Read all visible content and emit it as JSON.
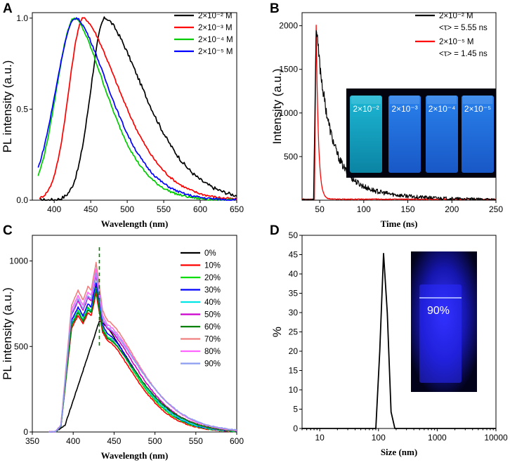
{
  "chart_data": [
    {
      "panel": "A",
      "type": "line",
      "xlabel": "Wavelength (nm)",
      "ylabel": "PL intensity (a.u.)",
      "xlim": [
        370,
        650
      ],
      "ylim": [
        0,
        1.03
      ],
      "xticks": [
        400,
        450,
        500,
        550,
        600,
        650
      ],
      "yticks": [
        0.0,
        0.5,
        1.0
      ],
      "ytick_labels": [
        "0.0",
        "0.5",
        "1.0"
      ],
      "legend": "top-right",
      "series": [
        {
          "name": "2×10⁻² M",
          "color": "#000000",
          "peak": 470,
          "width_left": 20,
          "width_right": 55,
          "start": 380
        },
        {
          "name": "2×10⁻³ M",
          "color": "#ff0000",
          "peak": 440,
          "width_left": 20,
          "width_right": 52,
          "start": 380
        },
        {
          "name": "2×10⁻⁴ M",
          "color": "#00cc00",
          "peak": 428,
          "width_left": 25,
          "width_right": 45,
          "start": 378
        },
        {
          "name": "2×10⁻⁵ M",
          "color": "#0000ff",
          "peak": 430,
          "width_left": 28,
          "width_right": 48,
          "start": 378
        }
      ]
    },
    {
      "panel": "B",
      "type": "line",
      "xlabel": "Time (ns)",
      "ylabel": "Intensity (a.u.)",
      "xlim": [
        30,
        250
      ],
      "ylim": [
        0,
        2150
      ],
      "xticks": [
        50,
        100,
        150,
        200,
        250
      ],
      "yticks": [
        500,
        1000,
        1500,
        2000
      ],
      "legend": "top-right",
      "series": [
        {
          "name": "2×10⁻² M",
          "color": "#000000",
          "lifetime_label": "<τ> = 5.55 ns",
          "peak_time": 46,
          "peak": 1980,
          "tau": 15
        },
        {
          "name": "2×10⁻⁵ M",
          "color": "#ff0000",
          "lifetime_label": "<τ> = 1.45 ns",
          "peak_time": 46,
          "peak": 2000,
          "tau": 2.5
        }
      ],
      "inset_labels": [
        "2×10⁻²",
        "2×10⁻³",
        "2×10⁻⁴",
        "2×10⁻⁵"
      ]
    },
    {
      "panel": "C",
      "type": "line",
      "xlabel": "Wavelength (nm)",
      "ylabel": "PL intensity (a.u.)",
      "xlim": [
        350,
        600
      ],
      "ylim": [
        0,
        1150
      ],
      "xticks": [
        350,
        400,
        450,
        500,
        550,
        600
      ],
      "yticks": [
        0,
        500,
        1000
      ],
      "legend": "top-right",
      "dashed_line_x": 432,
      "series": [
        {
          "name": "0%",
          "color": "#000000",
          "peak": 648
        },
        {
          "name": "10%",
          "color": "#ff0000",
          "peak": 812
        },
        {
          "name": "20%",
          "color": "#00dd00",
          "peak": 848
        },
        {
          "name": "30%",
          "color": "#0000ff",
          "peak": 872
        },
        {
          "name": "40%",
          "color": "#00e5e5",
          "peak": 840
        },
        {
          "name": "50%",
          "color": "#cc00cc",
          "peak": 915
        },
        {
          "name": "60%",
          "color": "#008000",
          "peak": 832
        },
        {
          "name": "70%",
          "color": "#f08080",
          "peak": 990
        },
        {
          "name": "80%",
          "color": "#ff66ff",
          "peak": 952
        },
        {
          "name": "90%",
          "color": "#8c9cf0",
          "peak": 928
        }
      ]
    },
    {
      "panel": "D",
      "type": "line",
      "xlabel": "Size (nm)",
      "ylabel": "%",
      "xscale": "log",
      "xlim": [
        5,
        10000
      ],
      "ylim": [
        0,
        50
      ],
      "xticks": [
        10,
        100,
        1000,
        10000
      ],
      "yticks": [
        0,
        5,
        10,
        15,
        20,
        25,
        30,
        35,
        40,
        45,
        50
      ],
      "x": [
        5,
        90,
        105,
        122,
        141,
        164,
        190,
        10000
      ],
      "y": [
        0,
        0,
        20,
        45.3,
        30,
        4.3,
        0,
        0
      ],
      "inset_label": "90%"
    }
  ]
}
